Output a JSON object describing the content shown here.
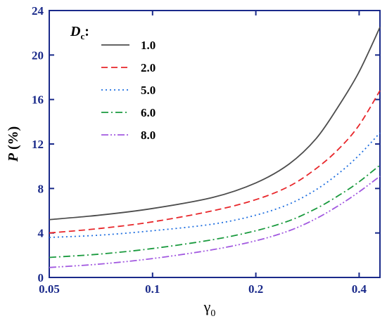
{
  "chart_data": {
    "type": "line",
    "xlabel": "γ",
    "xlabel_sub": "0",
    "ylabel": "P",
    "ylabel_unit": " (%)",
    "x_scale": "log",
    "xlim": [
      0.05,
      0.46
    ],
    "ylim": [
      0,
      24
    ],
    "x_ticks": [
      {
        "value": 0.05,
        "label": "0.05"
      },
      {
        "value": 0.1,
        "label": "0.1"
      },
      {
        "value": 0.2,
        "label": "0.2"
      },
      {
        "value": 0.4,
        "label": "0.4"
      }
    ],
    "y_ticks": [
      {
        "value": 0,
        "label": "0"
      },
      {
        "value": 4,
        "label": "4"
      },
      {
        "value": 8,
        "label": "8"
      },
      {
        "value": 12,
        "label": "12"
      },
      {
        "value": 16,
        "label": "16"
      },
      {
        "value": 20,
        "label": "20"
      },
      {
        "value": 24,
        "label": "24"
      }
    ],
    "legend_title_main": "D",
    "legend_title_sub": "c",
    "legend_title_suffix": ":",
    "legend_position": "top-left",
    "x": [
      0.05,
      0.07,
      0.1,
      0.15,
      0.2,
      0.25,
      0.3,
      0.35,
      0.4,
      0.46
    ],
    "series": [
      {
        "name": "1.0",
        "color": "#4d4d4d",
        "dash": "solid",
        "values": [
          5.2,
          5.6,
          6.2,
          7.2,
          8.5,
          10.2,
          12.5,
          15.5,
          18.5,
          22.5
        ]
      },
      {
        "name": "2.0",
        "color": "#e8262a",
        "dash": "dash",
        "values": [
          4.0,
          4.4,
          5.0,
          6.0,
          7.0,
          8.2,
          9.8,
          11.6,
          13.7,
          16.8
        ]
      },
      {
        "name": "5.0",
        "color": "#1f6fe0",
        "dash": "dot",
        "values": [
          3.6,
          3.8,
          4.2,
          4.8,
          5.6,
          6.6,
          7.9,
          9.4,
          11.0,
          13.0
        ]
      },
      {
        "name": "6.0",
        "color": "#1a9a3e",
        "dash": "dashdot",
        "values": [
          1.8,
          2.1,
          2.6,
          3.4,
          4.2,
          5.1,
          6.2,
          7.4,
          8.6,
          10.1
        ]
      },
      {
        "name": "8.0",
        "color": "#a259e0",
        "dash": "dashdotdot",
        "values": [
          0.9,
          1.2,
          1.7,
          2.5,
          3.3,
          4.2,
          5.3,
          6.5,
          7.7,
          9.1
        ]
      }
    ]
  }
}
